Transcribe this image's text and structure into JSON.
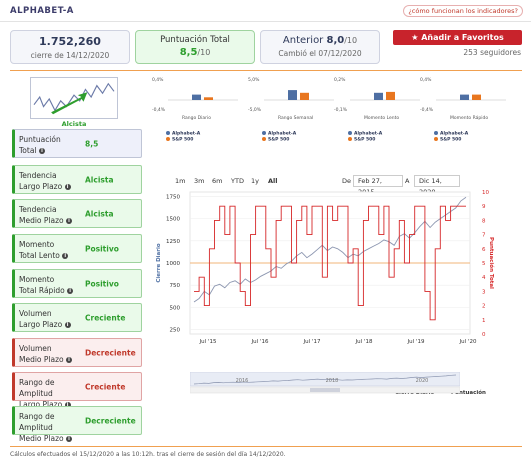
{
  "header": {
    "ticker": "ALPHABET-A",
    "how_link": "¿cómo funcionan los indicadores?"
  },
  "summary": {
    "price": "1.752,260",
    "price_note": "cierre de 14/12/2020",
    "score_label": "Puntuación Total",
    "score_value": "8,5",
    "score_max": "/10",
    "previous_prefix": "Anterior",
    "previous_value": "8,0",
    "previous_max": "/10",
    "previous_note": "Cambió el 07/12/2020",
    "fav_button": "Añadir a Favoritos",
    "followers": "253 seguidores"
  },
  "trend_thumb": {
    "label": "Alcista"
  },
  "mini_charts": [
    {
      "id": "diario",
      "title": "Rango Diario",
      "ymax": "0,4%",
      "ymin": "-0,4%",
      "values": {
        "alphabet": 0.3,
        "sp500": 0.15
      },
      "legend_a": "Alphabet-A",
      "legend_b": "S&P 500"
    },
    {
      "id": "semanal",
      "title": "Rango Semanal",
      "ymax": "5,0%",
      "ymin": "-5,0%",
      "values": {
        "alphabet": 0.55,
        "sp500": 0.4
      },
      "legend_a": "Alphabet-A",
      "legend_b": "S&P 500"
    },
    {
      "id": "lento",
      "title": "Momento Lento",
      "ymax": "0,2%",
      "ymin": "-0,1%",
      "values": {
        "alphabet": 0.4,
        "sp500": 0.45
      },
      "legend_a": "Alphabet-A",
      "legend_b": "S&P 500"
    },
    {
      "id": "rapido",
      "title": "Momento Rápido",
      "ymax": "0,4%",
      "ymin": "-0,4%",
      "values": {
        "alphabet": 0.3,
        "sp500": 0.3
      },
      "legend_a": "Alphabet-A",
      "legend_b": "S&P 500"
    }
  ],
  "indicators": [
    {
      "line1": "Puntuación",
      "line2": "Total",
      "value": "8,5",
      "kind": "score"
    },
    {
      "line1": "Tendencia",
      "line2": "Largo Plazo",
      "value": "Alcista",
      "kind": "pos"
    },
    {
      "line1": "Tendencia",
      "line2": "Medio Plazo",
      "value": "Alcista",
      "kind": "pos"
    },
    {
      "line1": "Momento",
      "line2": "Total Lento",
      "value": "Positivo",
      "kind": "pos"
    },
    {
      "line1": "Momento",
      "line2": "Total Rápido",
      "value": "Positivo",
      "kind": "pos"
    },
    {
      "line1": "Volumen",
      "line2": "Largo Plazo",
      "value": "Creciente",
      "kind": "pos"
    },
    {
      "line1": "Volumen",
      "line2": "Medio Plazo",
      "value": "Decreciente",
      "kind": "neg"
    },
    {
      "line1": "Rango de Amplitud",
      "line2": "Largo Plazo",
      "value": "Creciente",
      "kind": "neg"
    },
    {
      "line1": "Rango de Amplitud",
      "line2": "Medio Plazo",
      "value": "Decreciente",
      "kind": "pos"
    }
  ],
  "range_selector": {
    "buttons": [
      "1m",
      "3m",
      "6m",
      "YTD",
      "1y",
      "All"
    ],
    "active": "All",
    "from_label": "De",
    "from_date": "Feb 27, 2015",
    "to_label": "A",
    "to_date": "Dic 14, 2020"
  },
  "chart_data": {
    "type": "line",
    "x_ticks": [
      "Jul '15",
      "Jul '16",
      "Jul '17",
      "Jul '18",
      "Jul '19",
      "Jul '20"
    ],
    "y_left": {
      "label": "Cierre Diario",
      "ticks": [
        250,
        500,
        750,
        1000,
        1250,
        1500,
        1750
      ],
      "range": [
        200,
        1800
      ]
    },
    "y_right": {
      "label": "Puntuación Total",
      "ticks": [
        0,
        1,
        2,
        3,
        4,
        5,
        6,
        7,
        8,
        9,
        10
      ],
      "range": [
        0,
        10
      ]
    },
    "reference_line": 1000,
    "series": [
      {
        "name": "Cierre Diario",
        "color": "#8c96b0",
        "values": [
          560,
          600,
          680,
          640,
          740,
          760,
          720,
          780,
          800,
          760,
          820,
          780,
          810,
          850,
          880,
          910,
          960,
          940,
          990,
          1020,
          1080,
          1120,
          1060,
          1100,
          1150,
          1200,
          1140,
          1180,
          1160,
          1120,
          1060,
          1100,
          1080,
          1130,
          1160,
          1190,
          1220,
          1260,
          1240,
          1200,
          1300,
          1330,
          1280,
          1340,
          1410,
          1470,
          1400,
          1460,
          1500,
          1540,
          1580,
          1620,
          1700,
          1740
        ]
      },
      {
        "name": "Puntuación",
        "color": "#d62728",
        "values": [
          3,
          4,
          2,
          6,
          8,
          9,
          7,
          9,
          5,
          3,
          2,
          7,
          9,
          9,
          6,
          4,
          8,
          9,
          9,
          5,
          8,
          9,
          7,
          9,
          9,
          4,
          9,
          8,
          9,
          9,
          5,
          6,
          2,
          8,
          9,
          9,
          7,
          9,
          4,
          6,
          8,
          5,
          7,
          9,
          9,
          3,
          1,
          6,
          9,
          8,
          9,
          9,
          9,
          9
        ]
      }
    ],
    "navigator_ticks": [
      "2016",
      "2018",
      "2020"
    ],
    "legend": [
      "Cierre Diario",
      "Puntuación"
    ]
  },
  "footer": {
    "note": "Cálculos efectuados el 15/12/2020 a las 10:12h. tras el cierre de sesión del día 14/12/2020."
  },
  "colors": {
    "alphabet": "#4e6fa3",
    "sp500": "#e8761f",
    "score_line": "#d62728",
    "price_line": "#8c96b0",
    "positive": "#2e9e2e",
    "negative": "#c0392b"
  }
}
